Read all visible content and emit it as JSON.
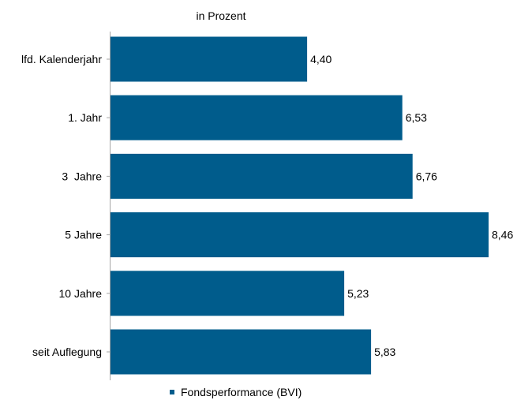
{
  "chart_data": {
    "type": "bar",
    "orientation": "horizontal",
    "unit_label": "in Prozent",
    "categories": [
      "lfd. Kalenderjahr",
      "1. Jahr",
      "3  Jahre",
      "5 Jahre",
      "10 Jahre",
      "seit Auflegung"
    ],
    "series": [
      {
        "name": "Fondsperformance (BVI)",
        "values": [
          4.4,
          6.53,
          6.76,
          8.46,
          5.23,
          5.83
        ],
        "value_labels": [
          "4,40",
          "6,53",
          "6,76",
          "8,46",
          "5,23",
          "5,83"
        ],
        "color": "#005c8c"
      }
    ],
    "xlim": [
      0,
      8.46
    ],
    "grid": false,
    "legend_position": "bottom"
  }
}
